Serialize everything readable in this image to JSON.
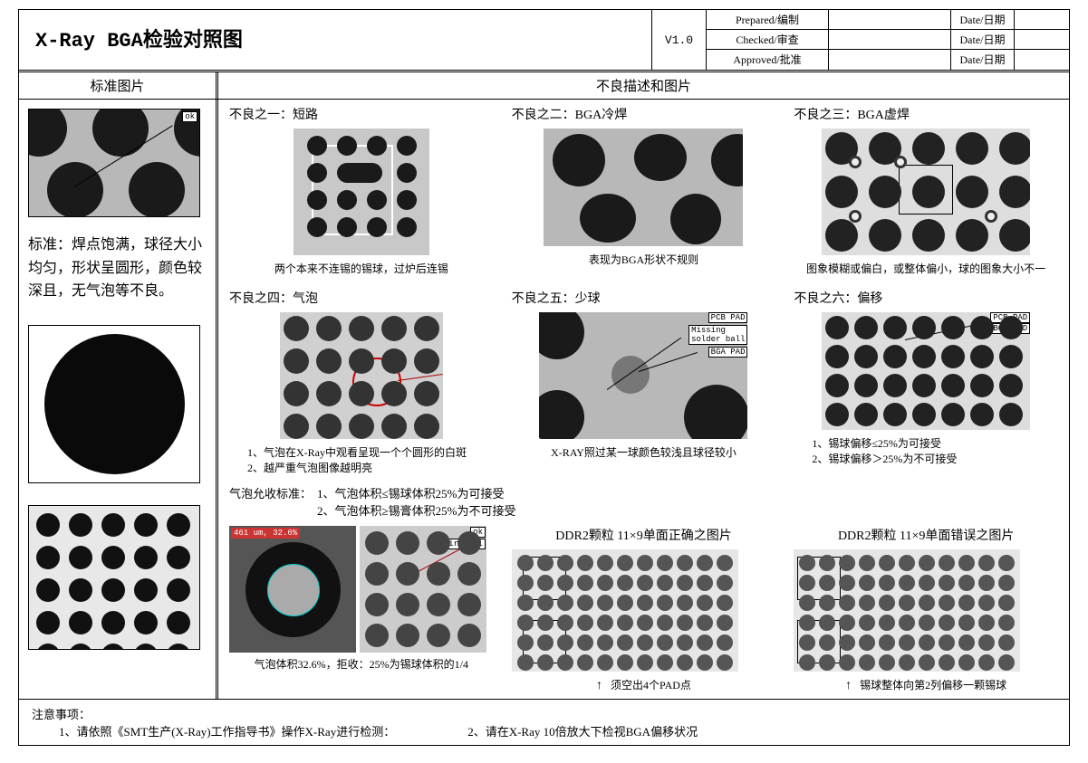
{
  "header": {
    "title": "X-Ray BGA检验对照图",
    "version": "V1.0",
    "signoffs": [
      {
        "label": "Prepared/编制",
        "date_label": "Date/日期"
      },
      {
        "label": "Checked/审查",
        "date_label": "Date/日期"
      },
      {
        "label": "Approved/批准",
        "date_label": "Date/日期"
      }
    ]
  },
  "section_headers": {
    "left": "标准图片",
    "right": "不良描述和图片"
  },
  "standard": {
    "ok_label": "ok",
    "text": "标准：焊点饱满，球径大小均匀，形状呈圆形，颜色较深且，无气泡等不良。"
  },
  "defects": {
    "d1": {
      "title": "不良之一：短路",
      "caption": "两个本来不连锡的锡球，过炉后连锡"
    },
    "d2": {
      "title": "不良之二：BGA冷焊",
      "caption": "表现为BGA形状不规则"
    },
    "d3": {
      "title": "不良之三：BGA虚焊",
      "caption": "图象模糊或偏白，或整体偏小，球的图象大小不一"
    },
    "d4": {
      "title": "不良之四：气泡",
      "caption1": "1、气泡在X-Ray中观看呈现一个个圆形的白斑",
      "caption2": "2、越严重气泡图像越明亮",
      "std_label": "气泡允收标准：",
      "std1": "1、气泡体积≤锡球体积25%为可接受",
      "std2": "2、气泡体积≥锡膏体积25%为不可接受",
      "bottom_caption": "气泡体积32.6%，拒收：25%为锡球体积的1/4",
      "airball_ok": "ok",
      "airball_label": "Air-ball",
      "meas_label": "461 um, 32.6%"
    },
    "d5": {
      "title": "不良之五：少球",
      "caption": "X-RAY照过某一球颜色较浅且球径较小",
      "pcb": "PCB PAD",
      "missing": "Missing\nsolder ball",
      "bga": "BGA PAD"
    },
    "d6": {
      "title": "不良之六：偏移",
      "caption1": "1、锡球偏移≤25%为可接受",
      "caption2": "2、锡球偏移＞25%为不可接受",
      "pcb": "PCB PAD",
      "bga": "BGA PAD"
    },
    "ddr_ok": {
      "title": "DDR2颗粒 11×9单面正确之图片",
      "callout": "须空出4个PAD点"
    },
    "ddr_ng": {
      "title": "DDR2颗粒 11×9单面错误之图片",
      "callout": "锡球整体向第2列偏移一颗锡球"
    }
  },
  "notes": {
    "heading": "注意事项：",
    "n1": "1、请依照《SMT生产(X-Ray)工作指导书》操作X-Ray进行检测：",
    "n2": "2、请在X-Ray 10倍放大下检视BGA偏移状况"
  },
  "colors": {
    "ball": "#1a1a1a",
    "xray_bg": "#b8b8b8",
    "border": "#000000"
  }
}
